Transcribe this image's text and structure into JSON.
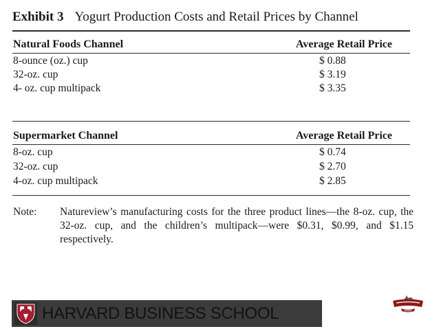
{
  "exhibit": {
    "label": "Exhibit 3",
    "title": "Yogurt Production Costs and Retail Prices by Channel"
  },
  "natural_foods": {
    "header": "Natural Foods Channel",
    "price_header": "Average Retail Price",
    "rows": [
      {
        "item": "8-ounce (oz.) cup",
        "price": "$ 0.88"
      },
      {
        "item": "32-oz. cup",
        "price": "$ 3.19"
      },
      {
        "item": "4- oz. cup multipack",
        "price": "$ 3.35"
      }
    ]
  },
  "supermarket": {
    "header": "Supermarket Channel",
    "price_header": "Average Retail Price",
    "rows": [
      {
        "item": "8-oz. cup",
        "price": "$ 0.74"
      },
      {
        "item": "32-oz. cup",
        "price": "$ 2.70"
      },
      {
        "item": "4-oz. cup multipack",
        "price": "$ 2.85"
      }
    ]
  },
  "note": {
    "label": "Note:",
    "text": "Natureview’s manufacturing costs for the three product lines—the 8-oz. cup, the 32-oz. cup, and the children’s multipack—were $0.31, $0.99, and $1.15 respectively."
  },
  "footer": {
    "school_name": "HARVARD BUSINESS SCHOOL",
    "bar_color": "#3b3b3b",
    "shield_color": "#a51c30",
    "shield_icon": "harvard-veritas-shield-icon",
    "company_logo": "natureview-farm-logo-icon"
  }
}
